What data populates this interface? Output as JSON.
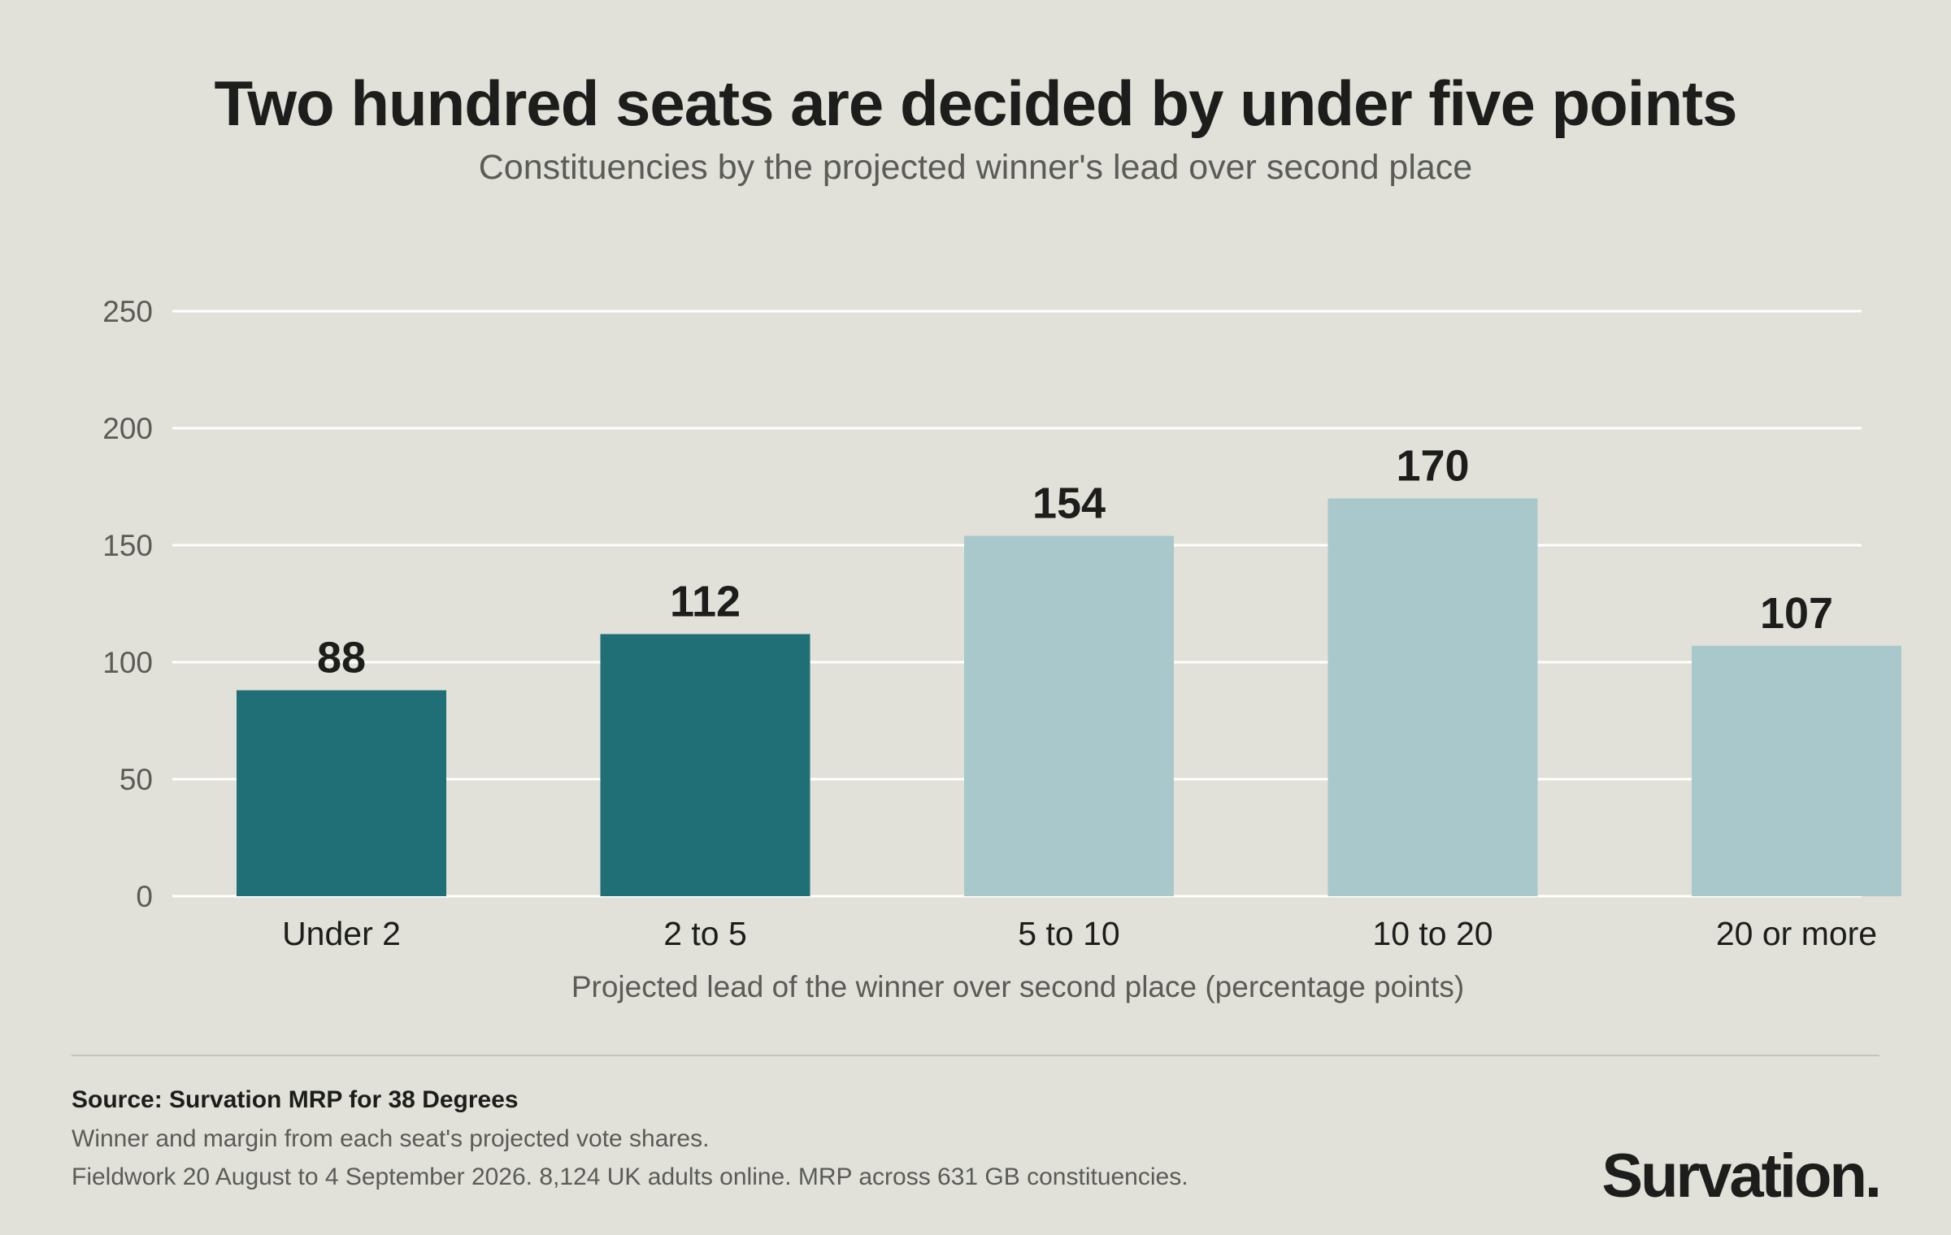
{
  "colors": {
    "background": "#e1e1da",
    "highlight_bar": "#206f77",
    "muted_bar": "#a9c8cc",
    "gridline": "#ffffff",
    "text_dark": "#1d1d1b",
    "text_muted": "#5b5b57"
  },
  "chart_data": {
    "type": "bar",
    "title": "Two hundred seats are decided by under five points",
    "subtitle": "Constituencies by the projected winner's lead over second place",
    "xlabel": "Projected lead of the winner over second place (percentage points)",
    "ylabel": "",
    "categories": [
      "Under 2",
      "2 to 5",
      "5 to 10",
      "10 to 20",
      "20 or more"
    ],
    "values": [
      88,
      112,
      154,
      170,
      107
    ],
    "data_labels": [
      "88",
      "112",
      "154",
      "170",
      "107"
    ],
    "highlighted": [
      true,
      true,
      false,
      false,
      false
    ],
    "ylim": [
      0,
      250
    ],
    "yticks": [
      0,
      50,
      100,
      150,
      200,
      250
    ],
    "grid": true,
    "legend": "none"
  },
  "footer": {
    "source": "Source: Survation MRP for 38 Degrees",
    "note1": "Winner and margin from each seat's projected vote shares.",
    "note2": "Fieldwork 20 August to 4 September 2026. 8,124 UK adults online. MRP across 631 GB constituencies."
  },
  "brand": {
    "logo_text": "Survation."
  }
}
